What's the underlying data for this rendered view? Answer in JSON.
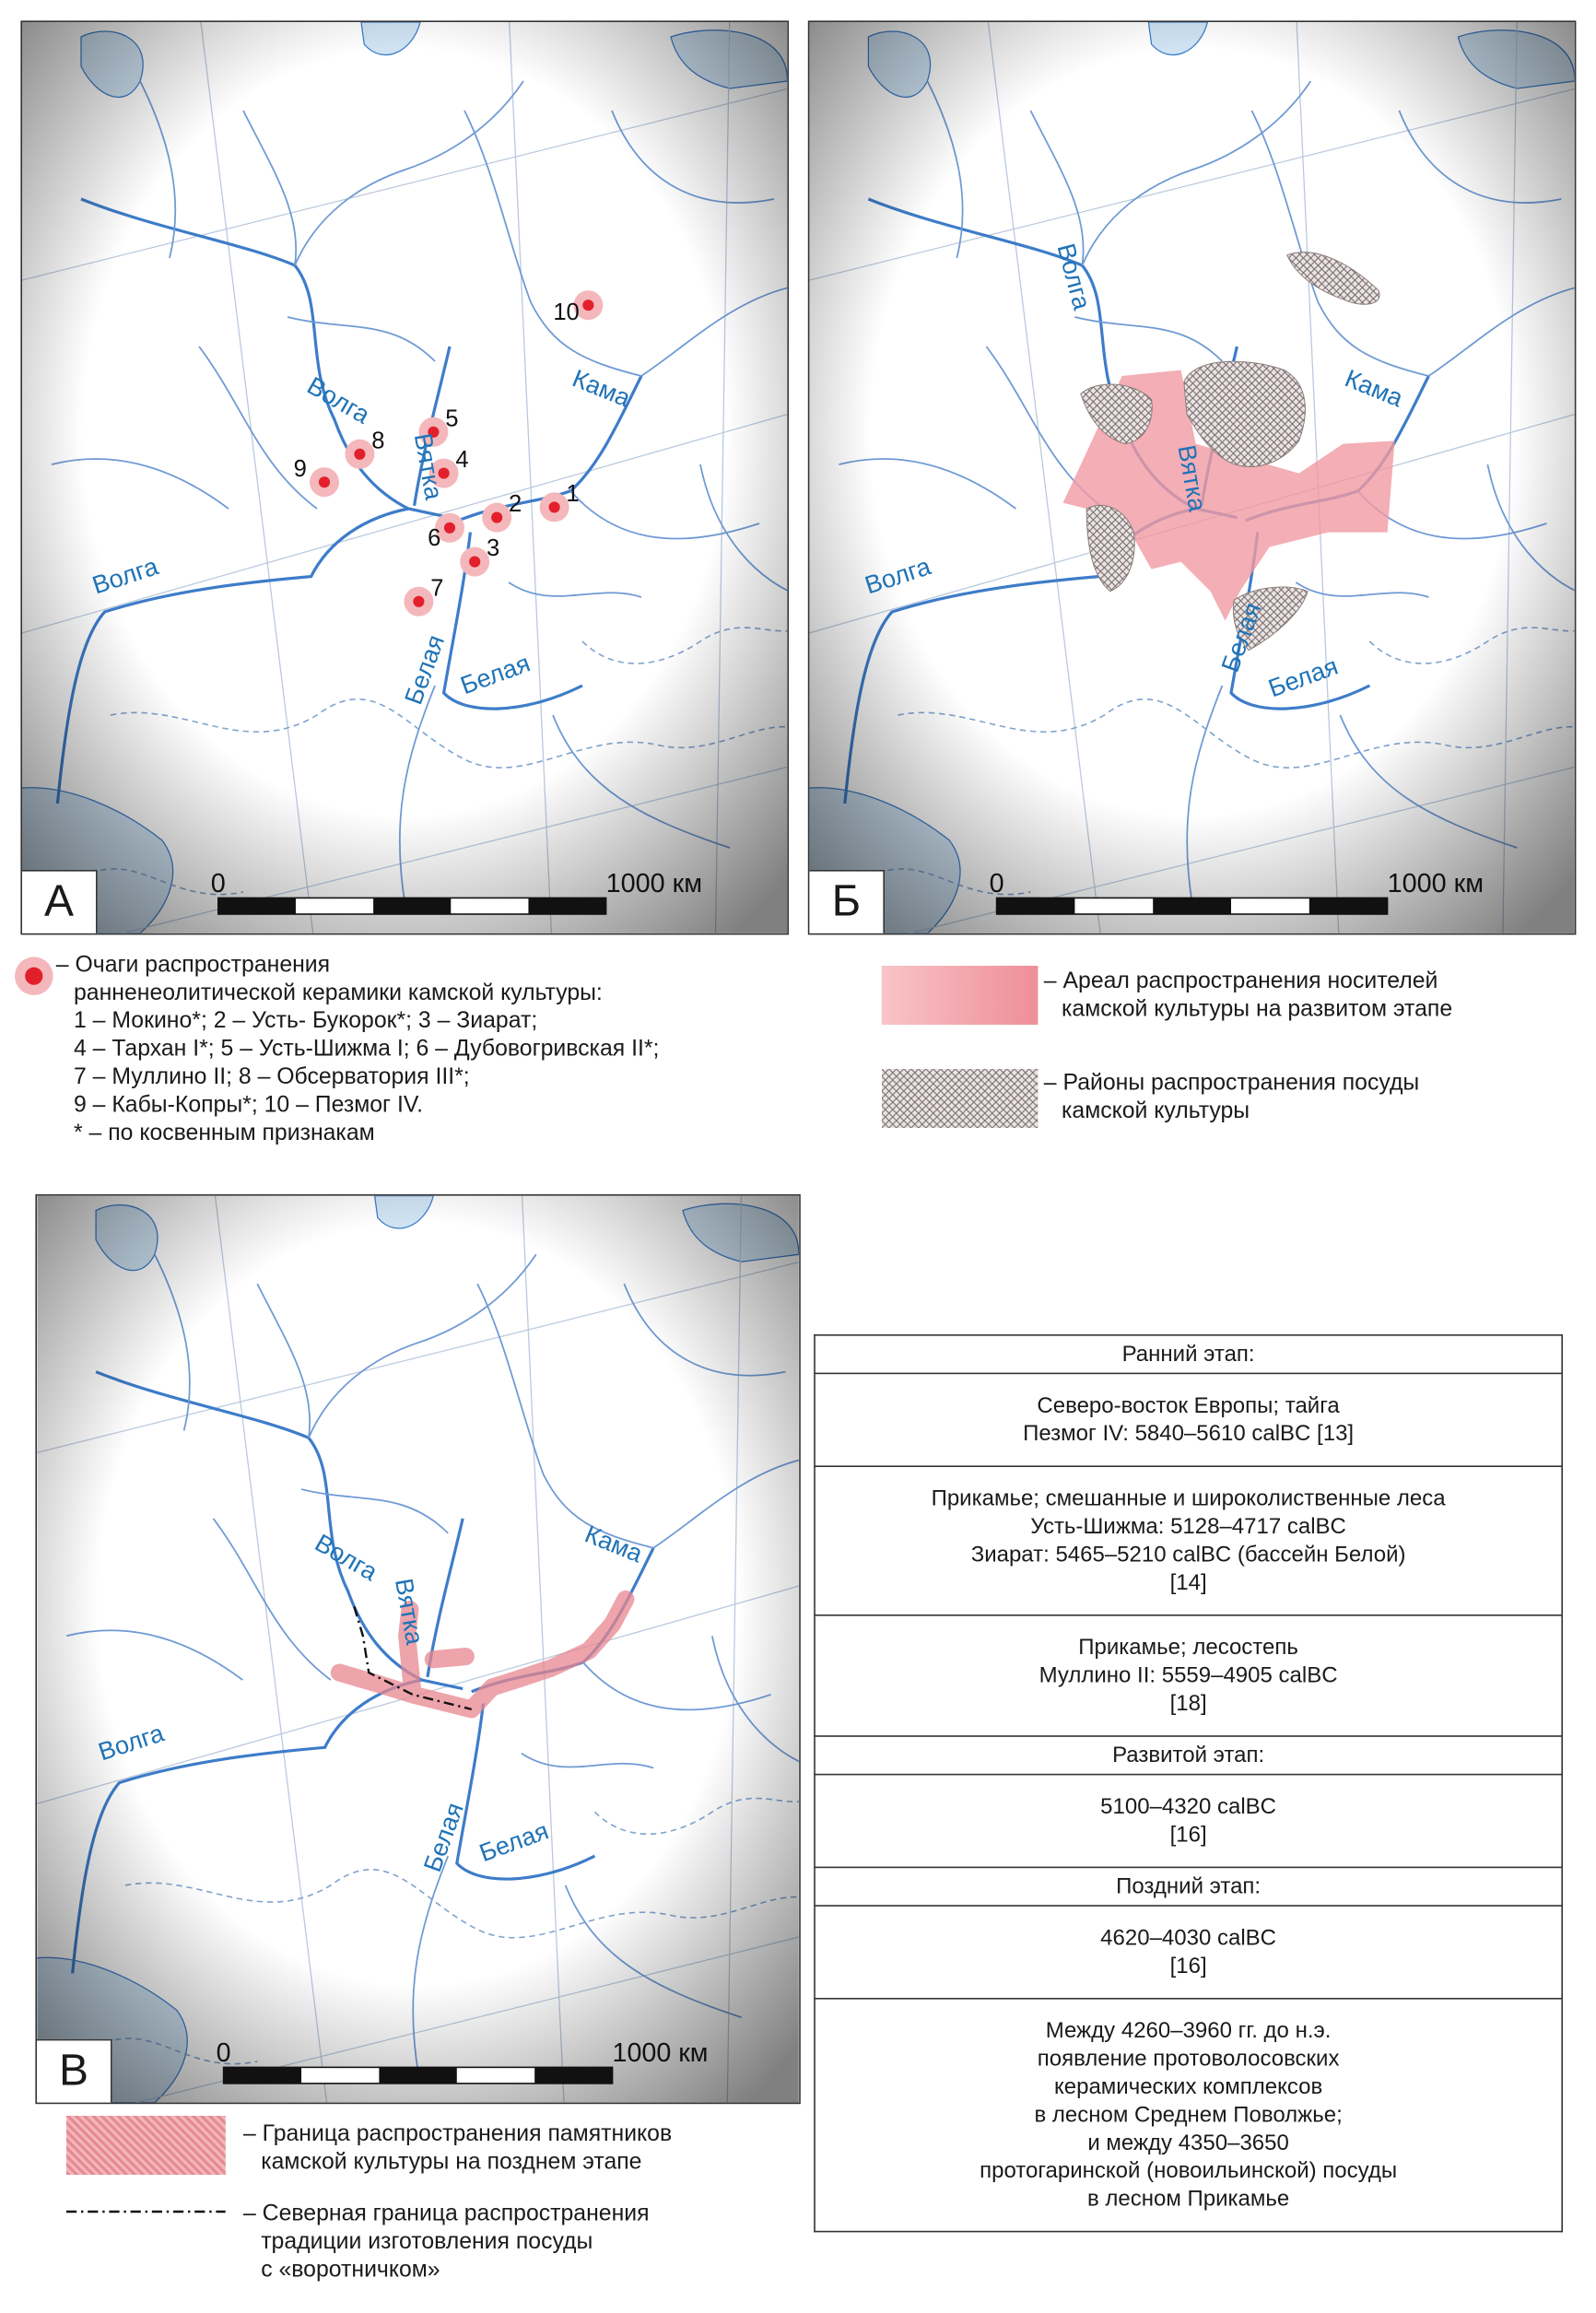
{
  "colors": {
    "river": "#3d7cc9",
    "water": "#cfe3f3",
    "marker": "#e2202c",
    "marker_halo": "#f4b8bc",
    "area": "#f19aa3",
    "hatch": "#8a7a7a",
    "text_river": "#1f73b7"
  },
  "rivers": {
    "volga": "Волга",
    "vyatka": "Вятка",
    "kama": "Кама",
    "belaya": "Белая"
  },
  "scale": {
    "zero": "0",
    "max": "1000 км"
  },
  "panels": {
    "a": {
      "letter": "А",
      "markers": [
        "1",
        "2",
        "3",
        "4",
        "5",
        "6",
        "7",
        "8",
        "9",
        "10"
      ]
    },
    "b": {
      "letter": "Б"
    },
    "v": {
      "letter": "В"
    }
  },
  "legend_a": {
    "icon": "red-dot-icon",
    "lines": [
      "– Очаги распространения",
      "ранненеолитической керамики камской культуры:",
      "1 – Мокино*; 2 – Усть- Букорок*; 3 – Зиарат;",
      "4 – Тархан I*; 5 – Усть-Шижма I; 6 – Дубовогривская II*;",
      "7 – Муллино II; 8 – Обсерватория III*;",
      "9 – Кабы-Копры*; 10 – Пезмог IV.",
      "* – по косвенным признакам"
    ]
  },
  "legend_b": {
    "items": [
      {
        "icon": "pink-area-swatch",
        "lines": [
          "– Ареал распространения носителей",
          "камской культуры на развитом этапе"
        ]
      },
      {
        "icon": "crosshatch-swatch",
        "lines": [
          "– Районы распространения посуды",
          "камской культуры"
        ]
      }
    ]
  },
  "legend_v": {
    "items": [
      {
        "icon": "pink-border-swatch",
        "lines": [
          "– Граница распространения памятников",
          "камской культуры на позднем этапе"
        ]
      },
      {
        "icon": "dash-dot-line-swatch",
        "lines": [
          "– Северная граница распространения",
          "традиции изготовления посуды",
          "с «воротничком»"
        ]
      }
    ]
  },
  "table": {
    "rows": [
      [
        "Ранний этап:"
      ],
      [
        "Северо-восток Европы; тайга",
        "Пезмог IV: 5840–5610 calBC [13]"
      ],
      [
        "Прикамье; смешанные и широколиственные леса",
        "Усть-Шижма: 5128–4717 calBC",
        "Зиарат: 5465–5210 calBC (бассейн Белой)",
        "[14]"
      ],
      [
        "Прикамье; лесостепь",
        "Муллино II: 5559–4905 calBC",
        "[18]"
      ],
      [
        "Развитой этап:"
      ],
      [
        "5100–4320 calBC",
        "[16]"
      ],
      [
        "Поздний этап:"
      ],
      [
        "4620–4030 calBC",
        "[16]"
      ],
      [
        "Между 4260–3960 гг. до н.э.",
        "появление протоволосовских",
        "керамических комплексов",
        "в лесном Среднем Поволжье;",
        "и между 4350–3650",
        "протогаринской (новоильинской) посуды",
        "в лесном Прикамье"
      ]
    ]
  }
}
